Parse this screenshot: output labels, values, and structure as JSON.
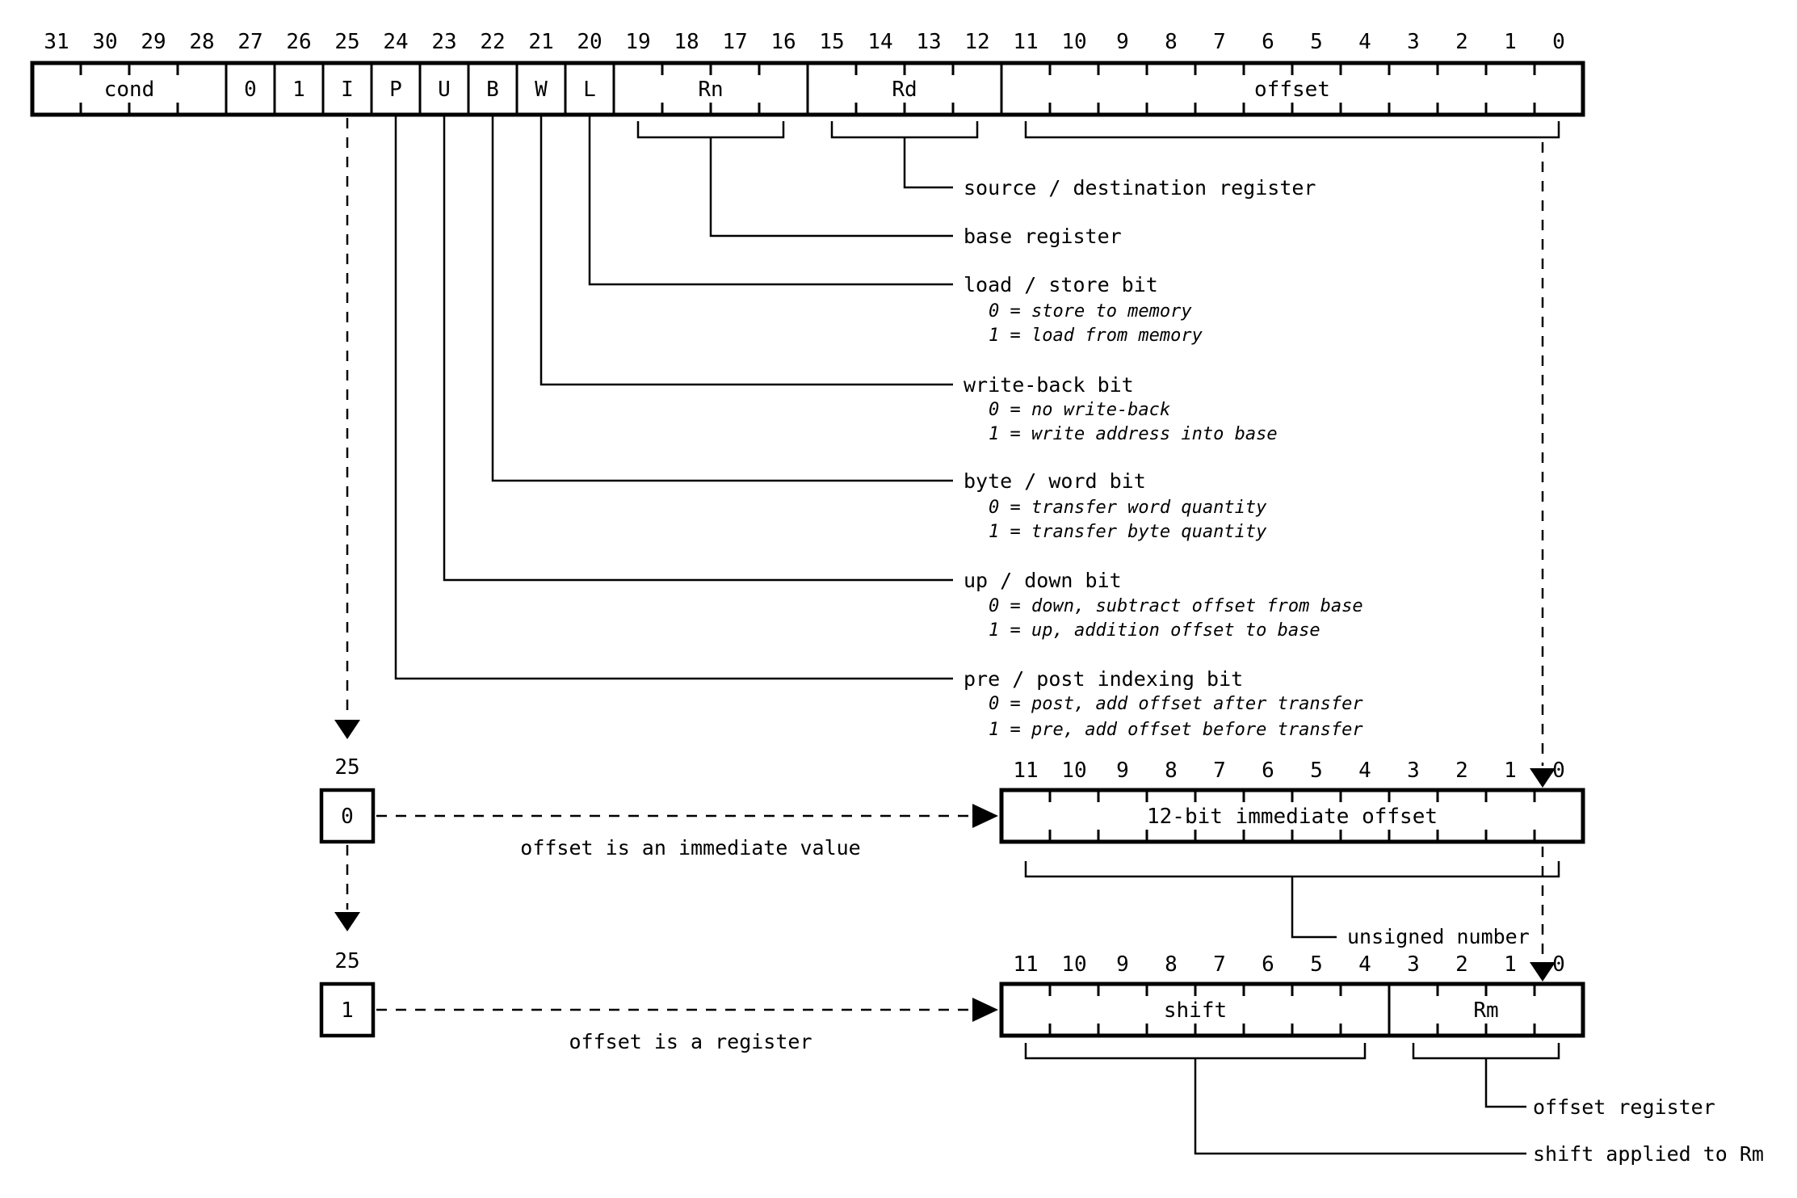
{
  "colors": {
    "ink": "#000000",
    "background": "#ffffff"
  },
  "main_register": {
    "bit_numbers": [
      "31",
      "30",
      "29",
      "28",
      "27",
      "26",
      "25",
      "24",
      "23",
      "22",
      "21",
      "20",
      "19",
      "18",
      "17",
      "16",
      "15",
      "14",
      "13",
      "12",
      "11",
      "10",
      "9",
      "8",
      "7",
      "6",
      "5",
      "4",
      "3",
      "2",
      "1",
      "0"
    ],
    "fields": {
      "cond": "cond",
      "bit27": "0",
      "bit26": "1",
      "i": "I",
      "p": "P",
      "u": "U",
      "b": "B",
      "w": "W",
      "l": "L",
      "rn": "Rn",
      "rd": "Rd",
      "offset": "offset"
    }
  },
  "callouts": {
    "rd": "source / destination register",
    "rn": "base register",
    "l": {
      "title": "load / store bit",
      "v0": "0 = store to memory",
      "v1": "1 = load from memory"
    },
    "w": {
      "title": "write-back bit",
      "v0": "0 = no write-back",
      "v1": "1 = write address into base"
    },
    "b": {
      "title": "byte / word bit",
      "v0": "0 = transfer word quantity",
      "v1": "1 = transfer byte quantity"
    },
    "u": {
      "title": "up / down bit",
      "v0": "0 = down, subtract offset from base",
      "v1": "1 = up, addition offset to base"
    },
    "p": {
      "title": "pre / post indexing bit",
      "v0": "0 = post, add offset after transfer",
      "v1": "1 = pre, add offset before transfer"
    }
  },
  "immediate_variant": {
    "bit_label": "25",
    "bit_value": "0",
    "arrow_caption": "offset is an immediate value",
    "bit_numbers": [
      "11",
      "10",
      "9",
      "8",
      "7",
      "6",
      "5",
      "4",
      "3",
      "2",
      "1",
      "0"
    ],
    "field_label": "12-bit immediate offset",
    "callout": "unsigned number"
  },
  "register_variant": {
    "bit_label": "25",
    "bit_value": "1",
    "arrow_caption": "offset is a register",
    "bit_numbers": [
      "11",
      "10",
      "9",
      "8",
      "7",
      "6",
      "5",
      "4",
      "3",
      "2",
      "1",
      "0"
    ],
    "fields": {
      "shift": "shift",
      "rm": "Rm"
    },
    "callouts": {
      "rm": "offset register",
      "shift": "shift applied to Rm"
    }
  }
}
